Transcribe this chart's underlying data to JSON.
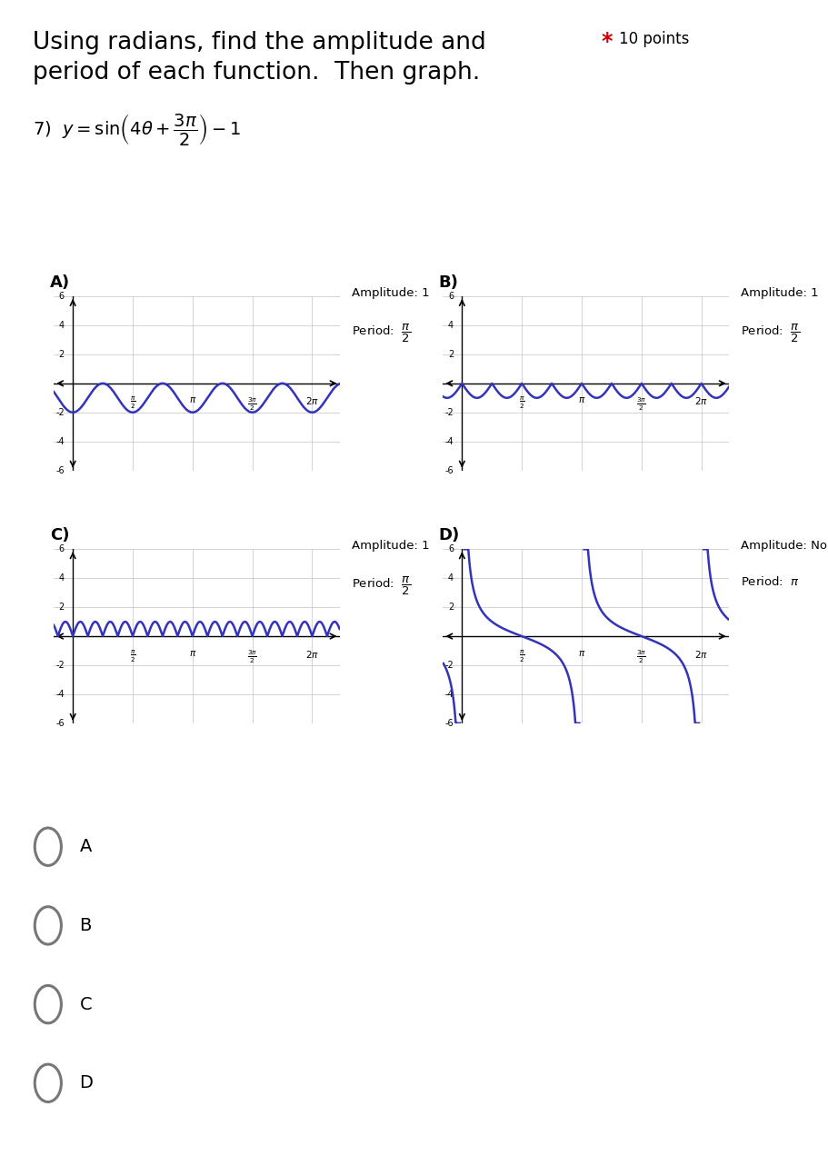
{
  "title_line1": "Using radians, find the amplitude and",
  "title_star": "*",
  "title_points": "10 points",
  "title_line2": "period of each function.  Then graph.",
  "bg_color": "#ffffff",
  "blue_color": "#3333bb",
  "grid_color": "#cccccc",
  "axis_color": "#000000",
  "text_color": "#000000",
  "red_color": "#cc0000",
  "gray_color": "#777777",
  "panel_labels": [
    "A)",
    "B)",
    "C)",
    "D)"
  ],
  "amplitude_labels": [
    "Amplitude: 1",
    "Amplitude: 1",
    "Amplitude: 1",
    "Amplitude: None"
  ],
  "period_labels_tex": [
    "\\frac{\\pi}{2}",
    "\\frac{\\pi}{2}",
    "\\frac{\\pi}{2}",
    "\\pi"
  ],
  "choice_labels": [
    "A",
    "B",
    "C",
    "D"
  ],
  "ylim": [
    -6,
    6
  ],
  "xlim_min": -0.5,
  "xlim_max": 7.0
}
